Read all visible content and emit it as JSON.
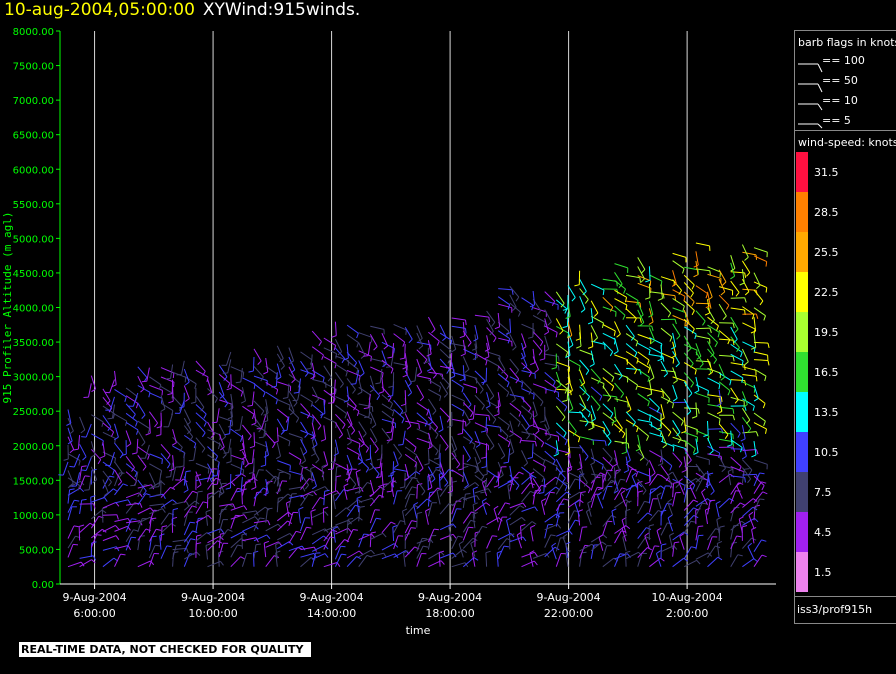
{
  "title": {
    "date": "10-aug-2004,05:00:00",
    "name": "XYWind:915winds."
  },
  "legend": {
    "barb_title": "barb flags in knots",
    "barbs": [
      {
        "label": "== 100",
        "kind": "pennant"
      },
      {
        "label": "== 50",
        "kind": "pennant"
      },
      {
        "label": "== 10",
        "kind": "full"
      },
      {
        "label": "== 5",
        "kind": "half"
      }
    ],
    "speed_title": "wind-speed: knots",
    "speed_scale": [
      {
        "label": "31.5",
        "color": "#ff1040"
      },
      {
        "label": "28.5",
        "color": "#ff8000"
      },
      {
        "label": "25.5",
        "color": "#ffa800"
      },
      {
        "label": "22.5",
        "color": "#ffff00"
      },
      {
        "label": "19.5",
        "color": "#a8ff30"
      },
      {
        "label": "16.5",
        "color": "#30e030"
      },
      {
        "label": "13.5",
        "color": "#00ffff"
      },
      {
        "label": "10.5",
        "color": "#4040ff"
      },
      {
        "label": "7.5",
        "color": "#404070"
      },
      {
        "label": "4.5",
        "color": "#a020f0"
      },
      {
        "label": "1.5",
        "color": "#ee82ee"
      }
    ]
  },
  "source_label": "iss3/prof915h",
  "footer_note": "REAL-TIME DATA, NOT CHECKED FOR QUALITY",
  "colors": {
    "axis": "#00ff00",
    "gridline": "#ffffff",
    "background": "#000000"
  },
  "chart_data": {
    "type": "scatter",
    "xlabel": "time",
    "ylabel": "915 Profiler Altitude (m agl)",
    "ylim": [
      0,
      8000
    ],
    "yticks": [
      "0.00",
      "500.00",
      "1000.00",
      "1500.00",
      "2000.00",
      "2500.00",
      "3000.00",
      "3500.00",
      "4000.00",
      "4500.00",
      "5000.00",
      "5500.00",
      "6000.00",
      "6500.00",
      "7000.00",
      "7500.00",
      "8000.00"
    ],
    "xlim": [
      "2004-08-09T04:50:00",
      "2004-08-10T05:00:00"
    ],
    "xticks": [
      {
        "t": "2004-08-09T06:00:00",
        "line1": "9-Aug-2004",
        "line2": "6:00:00"
      },
      {
        "t": "2004-08-09T10:00:00",
        "line1": "9-Aug-2004",
        "line2": "10:00:00"
      },
      {
        "t": "2004-08-09T14:00:00",
        "line1": "9-Aug-2004",
        "line2": "14:00:00"
      },
      {
        "t": "2004-08-09T18:00:00",
        "line1": "9-Aug-2004",
        "line2": "18:00:00"
      },
      {
        "t": "2004-08-09T22:00:00",
        "line1": "9-Aug-2004",
        "line2": "22:00:00"
      },
      {
        "t": "2004-08-10T02:00:00",
        "line1": "10-Aug-2004",
        "line2": "2:00:00"
      }
    ],
    "series_description": "wind barbs: x = time, y = altitude (m agl), color = wind speed (knots)",
    "grid": "vertical lines at x ticks",
    "legend_position": "right"
  }
}
